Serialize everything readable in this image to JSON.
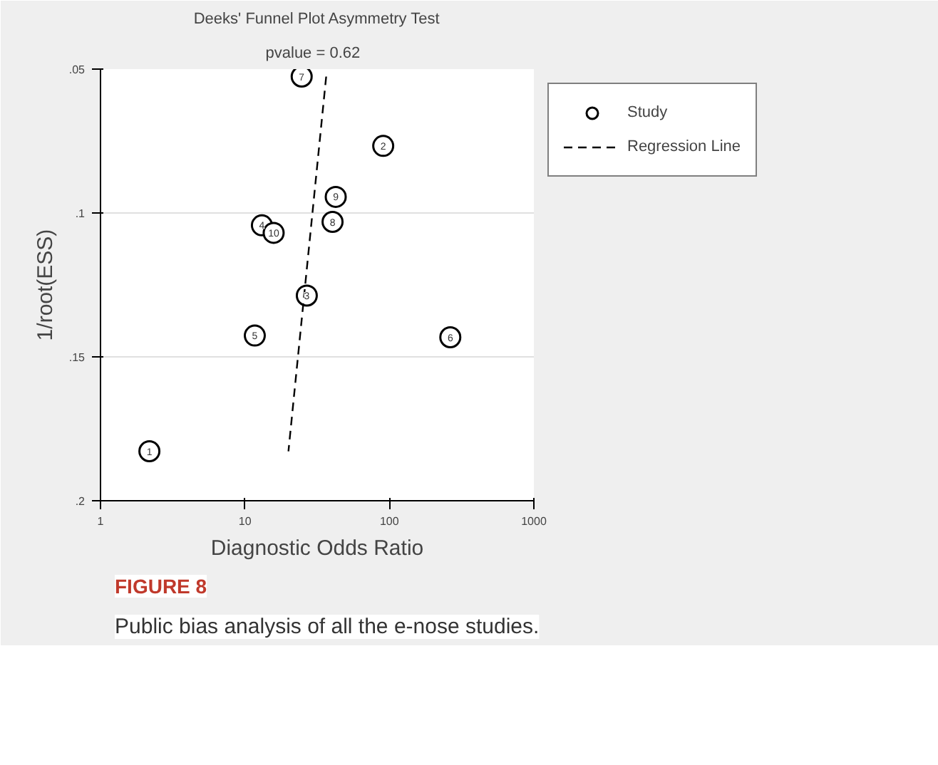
{
  "chart_data": {
    "type": "scatter",
    "title": "Deeks' Funnel Plot Asymmetry Test",
    "subtitle": "pvalue =   0.62",
    "xlabel": "Diagnostic Odds Ratio",
    "ylabel": "1/root(ESS)",
    "log": "x",
    "xlim": [
      1,
      1000
    ],
    "xticks": [
      1,
      10,
      100,
      1000
    ],
    "ylim": [
      0.2,
      0.05
    ],
    "yticks": [
      {
        "value": 0.05,
        "label": ".05"
      },
      {
        "value": 0.1,
        "label": ".1"
      },
      {
        "value": 0.15,
        "label": ".15"
      },
      {
        "value": 0.2,
        "label": ".2"
      }
    ],
    "grid": "y",
    "legend": "right",
    "series": [
      {
        "name": "Study",
        "marker": "circle",
        "color": "#000000",
        "x": [
          2.18,
          90.6,
          26.8,
          13.1,
          11.7,
          264,
          24.7,
          40.4,
          42.5,
          15.8
        ],
        "values": [
          0.1828,
          0.0767,
          0.1287,
          0.1043,
          0.1426,
          0.1432,
          0.0526,
          0.1031,
          0.0944,
          0.1069
        ]
      },
      {
        "name": "Regression Line",
        "type": "line",
        "line_style": "dashed",
        "color": "#000000",
        "x": [
          36.5,
          20
        ],
        "values": [
          0.0526,
          0.1828
        ]
      }
    ],
    "annotations": [
      {
        "text": "1",
        "x": 2.18,
        "y": 0.1828
      },
      {
        "text": "2",
        "x": 90.6,
        "y": 0.0767
      },
      {
        "text": "3",
        "x": 26.8,
        "y": 0.1287
      },
      {
        "text": "4",
        "x": 13.1,
        "y": 0.1043
      },
      {
        "text": "5",
        "x": 11.7,
        "y": 0.1426
      },
      {
        "text": "6",
        "x": 264,
        "y": 0.1432
      },
      {
        "text": "7",
        "x": 24.7,
        "y": 0.0526
      },
      {
        "text": "8",
        "x": 40.4,
        "y": 0.1031
      },
      {
        "text": "9",
        "x": 42.5,
        "y": 0.0944
      },
      {
        "text": "10",
        "x": 15.8,
        "y": 0.1069
      },
      "FIGURE 8",
      "Public bias analysis of all the e-nose studies."
    ]
  }
}
